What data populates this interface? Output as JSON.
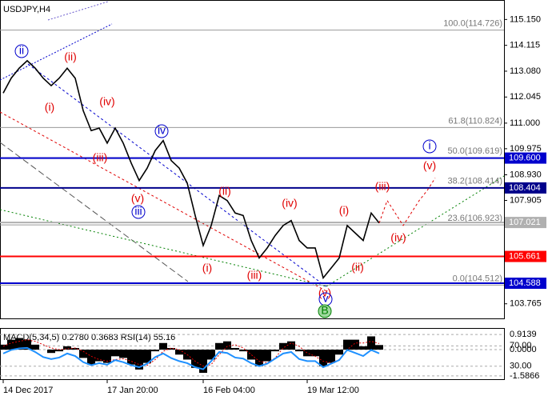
{
  "chart_data": [
    {
      "type": "line",
      "title": "USDJPY,H4",
      "categories": [
        "14 Dec 2017",
        null,
        null,
        null,
        null,
        null,
        null,
        null,
        null,
        null,
        null,
        null,
        null,
        "17 Jan 20:00",
        null,
        null,
        null,
        null,
        null,
        null,
        null,
        null,
        null,
        null,
        null,
        "16 Feb 04:00",
        null,
        null,
        null,
        null,
        null,
        null,
        null,
        null,
        null,
        null,
        null,
        null,
        "19 Mar 12:00",
        null,
        null,
        null,
        null,
        null,
        null,
        null,
        null,
        null,
        null,
        null,
        null,
        null,
        null,
        null,
        null
      ],
      "series": [
        {
          "color": "#000000",
          "style": "solid",
          "values": [
            112.2,
            112.8,
            113.2,
            113.5,
            113.2,
            112.8,
            112.5,
            112.8,
            113.2,
            112.8,
            111.5,
            110.7,
            110.8,
            110.2,
            110.8,
            110.2,
            109.4,
            108.7,
            109.2,
            109.9,
            110.3,
            109.5,
            109.2,
            108.6,
            107.3,
            106.1,
            106.9,
            108.1,
            107.9,
            107.4,
            107.3,
            106.3,
            105.6,
            106.0,
            106.5,
            106.9,
            107.1,
            106.3,
            106.0,
            106.0,
            104.8,
            105.2,
            105.6,
            106.9,
            106.6,
            106.3,
            107.4,
            107.0,
            null,
            null,
            null,
            null,
            null,
            null,
            null
          ]
        },
        {
          "color": "#e00000",
          "style": "dotted",
          "values": [
            null,
            null,
            null,
            null,
            null,
            null,
            null,
            null,
            null,
            null,
            null,
            null,
            null,
            null,
            null,
            null,
            null,
            null,
            null,
            null,
            null,
            null,
            null,
            null,
            null,
            null,
            null,
            null,
            null,
            null,
            null,
            null,
            null,
            null,
            null,
            null,
            null,
            null,
            null,
            null,
            null,
            null,
            null,
            null,
            null,
            null,
            null,
            107.0,
            107.9,
            107.4,
            106.9,
            107.4,
            107.9,
            108.3,
            108.8
          ]
        }
      ],
      "ylim": [
        103.18,
        115.93
      ],
      "yticks": [
        {
          "value": 115.15,
          "label": "115.150"
        },
        {
          "value": 114.115,
          "label": "114.115"
        },
        {
          "value": 113.08,
          "label": "113.080"
        },
        {
          "value": 112.045,
          "label": "112.045"
        },
        {
          "value": 111.0,
          "label": "111.000"
        },
        {
          "value": 109.975,
          "label": "109.975"
        },
        {
          "value": 108.93,
          "label": "108.930"
        },
        {
          "value": 107.905,
          "label": "107.905"
        },
        {
          "value": 103.765,
          "label": "103.765"
        }
      ],
      "fib_levels": [
        {
          "value": 114.726,
          "label": "100.0(114.726)"
        },
        {
          "value": 110.824,
          "label": "61.8(110.824)"
        },
        {
          "value": 109.619,
          "label": "50.0(109.619)"
        },
        {
          "value": 108.414,
          "label": "38.2(108.414)"
        },
        {
          "value": 106.923,
          "label": "23.6(106.923)"
        },
        {
          "value": 104.512,
          "label": "0.0(104.512)"
        }
      ],
      "levels": [
        {
          "value": 109.6,
          "label": "109.600",
          "color": "#0000cd"
        },
        {
          "value": 108.404,
          "label": "108.404",
          "color": "#00008b"
        },
        {
          "value": 107.021,
          "label": "107.021",
          "color": "#b0b0b0"
        },
        {
          "value": 105.661,
          "label": "105.661",
          "color": "#ff0000"
        },
        {
          "value": 104.588,
          "label": "104.588",
          "color": "#0000cd"
        }
      ],
      "annotations": [
        {
          "text": "ii",
          "color": "#0000cc",
          "circle": true
        },
        {
          "text": "(ii)",
          "color": "#e00000",
          "circle": false
        },
        {
          "text": "(i)",
          "color": "#e00000",
          "circle": false
        },
        {
          "text": "(iv)",
          "color": "#e00000",
          "circle": false
        },
        {
          "text": "(iii)",
          "color": "#e00000",
          "circle": false
        },
        {
          "text": "iv",
          "color": "#0000cc",
          "circle": true
        },
        {
          "text": "(v)",
          "color": "#e00000",
          "circle": false
        },
        {
          "text": "iii",
          "color": "#0000cc",
          "circle": true
        },
        {
          "text": "(ii)",
          "color": "#e00000",
          "circle": false
        },
        {
          "text": "(i)",
          "color": "#e00000",
          "circle": false
        },
        {
          "text": "(iii)",
          "color": "#e00000",
          "circle": false
        },
        {
          "text": "(iv)",
          "color": "#e00000",
          "circle": false
        },
        {
          "text": "(v)",
          "color": "#e00000",
          "circle": false
        },
        {
          "text": "v",
          "color": "#0000cc",
          "circle": true
        },
        {
          "text": "B",
          "color": "#008000",
          "circle": true
        },
        {
          "text": "(i)",
          "color": "#e00000",
          "circle": false
        },
        {
          "text": "(ii)",
          "color": "#e00000",
          "circle": false
        },
        {
          "text": "(iii)",
          "color": "#e00000",
          "circle": false
        },
        {
          "text": "(iv)",
          "color": "#e00000",
          "circle": false
        },
        {
          "text": "(v)",
          "color": "#e00000",
          "circle": false
        },
        {
          "text": "i",
          "color": "#0000cc",
          "circle": true
        }
      ]
    },
    {
      "type": "oscillator",
      "title": "MACD(5,34,5) 0.2780 0.3683 RSI(14) 55.16",
      "ylim": [
        -1.783,
        1.257
      ],
      "yticks": [
        {
          "value": 0.9139,
          "label": "0.9139"
        },
        {
          "value": 0,
          "label": "0.0000"
        },
        {
          "value": -1.5866,
          "label": "-1.5866"
        }
      ],
      "y2lim": [
        4.4,
        103.6
      ],
      "y2ticks": [
        {
          "value": 70,
          "label": "70.00"
        },
        {
          "value": 30,
          "label": "30.00"
        }
      ],
      "series": [
        {
          "type": "bar",
          "color": "#000000",
          "values": [
            0.3,
            0.6,
            0.7,
            0.6,
            0.3,
            0,
            -0.2,
            -0.1,
            0.2,
            0.1,
            -0.5,
            -0.9,
            -0.7,
            -0.8,
            -0.4,
            -0.5,
            -0.9,
            -1.2,
            -0.8,
            -0.1,
            0.4,
            0.1,
            -0.3,
            -0.6,
            -1.1,
            -1.4,
            -0.6,
            0.4,
            0.5,
            0.1,
            -0.1,
            -0.6,
            -1.0,
            -0.7,
            -0.1,
            0.4,
            0.5,
            -0.1,
            -0.4,
            -0.4,
            -1.0,
            -0.8,
            -0.3,
            0.6,
            0.6,
            0.2,
            0.8,
            0.278
          ]
        },
        {
          "type": "line",
          "color": "#e00000",
          "values": [
            0.2,
            0.4,
            0.5,
            0.6,
            0.5,
            0.3,
            0.1,
            0,
            0.05,
            0.1,
            -0.1,
            -0.4,
            -0.6,
            -0.7,
            -0.6,
            -0.55,
            -0.7,
            -0.9,
            -0.95,
            -0.6,
            -0.1,
            0.1,
            0,
            -0.3,
            -0.7,
            -1.0,
            -0.9,
            -0.3,
            0.2,
            0.3,
            0.1,
            -0.3,
            -0.7,
            -0.8,
            -0.5,
            0.1,
            0.4,
            0.2,
            -0.2,
            -0.4,
            -0.7,
            -0.8,
            -0.6,
            0,
            0.4,
            0.4,
            0.5,
            0.3683
          ]
        },
        {
          "type": "line",
          "axis": "y2",
          "color": "#1e90ff",
          "values": [
            55,
            62,
            65,
            66,
            58,
            48,
            44,
            47,
            55,
            50,
            38,
            32,
            36,
            33,
            42,
            38,
            32,
            28,
            35,
            48,
            55,
            46,
            40,
            36,
            28,
            24,
            40,
            58,
            56,
            47,
            45,
            36,
            30,
            35,
            45,
            55,
            58,
            44,
            40,
            40,
            28,
            35,
            42,
            62,
            56,
            50,
            62,
            55.16
          ]
        }
      ]
    }
  ]
}
